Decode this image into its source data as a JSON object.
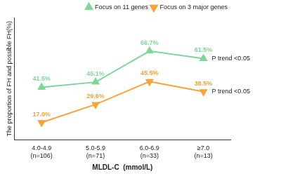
{
  "chart_data": {
    "type": "line",
    "x_label": "MLDL-C  (mmol/L)",
    "y_label": "The proportion of FH and possible FH(%)",
    "categories": [
      "4.0-4.9\n(n=106)",
      "5.0-5.9\n(n=71)",
      "6.0-6.9\n(n=33)",
      "≥7.0\n(n=13)"
    ],
    "series": [
      {
        "name": "Focus on 11 genes",
        "color": "#7ed69a",
        "marker": "triangle-up",
        "values": [
          41.5,
          45.1,
          66.7,
          61.5
        ],
        "value_labels": [
          "41.5%",
          "45.1%",
          "66.7%",
          "61.5%"
        ]
      },
      {
        "name": "Focus on 3 major genes",
        "color": "#f5a43a",
        "marker": "triangle-down",
        "values": [
          17.0,
          29.6,
          45.5,
          38.5
        ],
        "value_labels": [
          "17.0%",
          "29.6%",
          "45.5%",
          "38.5%"
        ]
      }
    ],
    "annotations": [
      {
        "text": "P trend <0.05",
        "series": "Focus on 11 genes"
      },
      {
        "text": "P trend <0.05",
        "series": "Focus on 3 major genes"
      }
    ],
    "ylim": [
      5,
      90
    ],
    "tick_labels": "x",
    "grid": false,
    "legend": "top",
    "data_labels": true
  }
}
